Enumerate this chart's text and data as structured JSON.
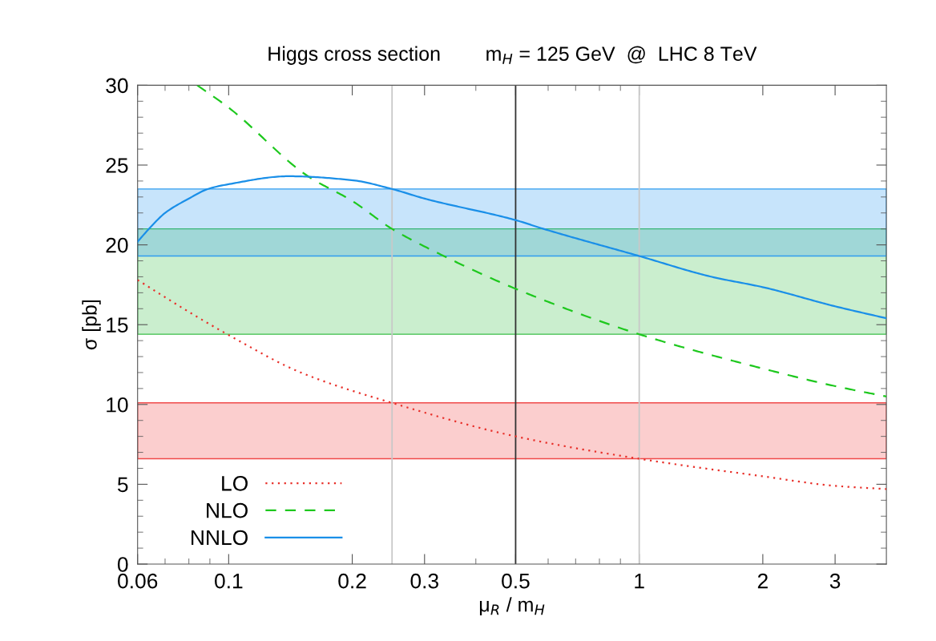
{
  "chart_data": {
    "type": "line",
    "title": "Higgs cross section        m$_{H}$ = 125 GeV  @  LHC 8 TeV",
    "xlabel": "μ$_{R}$ / m$_{H}$",
    "ylabel": "σ [pb]",
    "log": "x",
    "grid": false,
    "legend": "bottom left",
    "xlim": [
      0.06,
      4
    ],
    "ylim": [
      0,
      30
    ],
    "xticks": [
      0.06,
      {
        "value": 0.07,
        "label": null
      },
      {
        "value": 0.08,
        "label": null
      },
      {
        "value": 0.09,
        "label": null
      },
      0.1,
      0.2,
      0.3,
      {
        "value": 0.4,
        "label": null
      },
      0.5,
      {
        "value": 0.6,
        "label": null
      },
      {
        "value": 0.7,
        "label": null
      },
      {
        "value": 0.8,
        "label": null
      },
      {
        "value": 0.9,
        "label": null
      },
      1,
      2,
      3
    ],
    "yticks": [
      0,
      {
        "value": 1,
        "label": null
      },
      {
        "value": 2,
        "label": null
      },
      {
        "value": 3,
        "label": null
      },
      {
        "value": 4,
        "label": null
      },
      5,
      {
        "value": 6,
        "label": null
      },
      {
        "value": 7,
        "label": null
      },
      {
        "value": 8,
        "label": null
      },
      {
        "value": 9,
        "label": null
      },
      10,
      {
        "value": 11,
        "label": null
      },
      {
        "value": 12,
        "label": null
      },
      {
        "value": 13,
        "label": null
      },
      {
        "value": 14,
        "label": null
      },
      15,
      {
        "value": 16,
        "label": null
      },
      {
        "value": 17,
        "label": null
      },
      {
        "value": 18,
        "label": null
      },
      {
        "value": 19,
        "label": null
      },
      20,
      {
        "value": 21,
        "label": null
      },
      {
        "value": 22,
        "label": null
      },
      {
        "value": 23,
        "label": null
      },
      {
        "value": 24,
        "label": null
      },
      25,
      {
        "value": 26,
        "label": null
      },
      {
        "value": 27,
        "label": null
      },
      {
        "value": 28,
        "label": null
      },
      {
        "value": 29,
        "label": null
      },
      30
    ],
    "bands": [
      {
        "axis": "y",
        "from": 6.6,
        "to": 10.1,
        "color": "#f04a4a"
      },
      {
        "axis": "y",
        "from": 14.4,
        "to": 21.0,
        "color": "#3cbf4a"
      },
      {
        "axis": "y",
        "from": 19.3,
        "to": 23.5,
        "color": "#2f9cf0"
      }
    ],
    "ref_lines": [
      {
        "axis": "x",
        "value": 0.25,
        "color": "#c8c8c8"
      },
      {
        "axis": "x",
        "value": 0.5,
        "color": "#333333"
      },
      {
        "axis": "x",
        "value": 1,
        "color": "#c8c8c8"
      }
    ],
    "series": [
      {
        "name": "LO",
        "color": "#e8302a",
        "line_style": "dotted",
        "x": [
          0.06,
          0.08,
          0.1,
          0.15,
          0.25,
          0.5,
          1,
          2,
          3,
          4
        ],
        "values": [
          17.8,
          15.8,
          14.35,
          12.0,
          10.1,
          8.0,
          6.6,
          5.5,
          4.9,
          4.7
        ]
      },
      {
        "name": "NLO",
        "color": "#1ec81e",
        "line_style": "dashed",
        "x": [
          0.0838,
          0.1,
          0.156,
          0.2,
          0.25,
          0.3,
          0.5,
          1,
          2,
          3,
          4
        ],
        "values": [
          30,
          28.6,
          24.3,
          22.75,
          21.0,
          19.9,
          17.25,
          14.4,
          12.25,
          11.15,
          10.5
        ]
      },
      {
        "name": "NNLO",
        "color": "#1a8fe8",
        "line_style": "solid",
        "x": [
          0.06,
          0.065,
          0.07,
          0.08,
          0.089,
          0.1,
          0.14,
          0.2,
          0.25,
          0.3,
          0.5,
          0.585,
          1,
          1.5,
          2,
          3,
          4
        ],
        "values": [
          20.2,
          21.2,
          22.0,
          22.9,
          23.5,
          23.8,
          24.3,
          24.05,
          23.5,
          22.9,
          21.55,
          21.0,
          19.3,
          18.0,
          17.35,
          16.15,
          15.4
        ]
      }
    ]
  }
}
